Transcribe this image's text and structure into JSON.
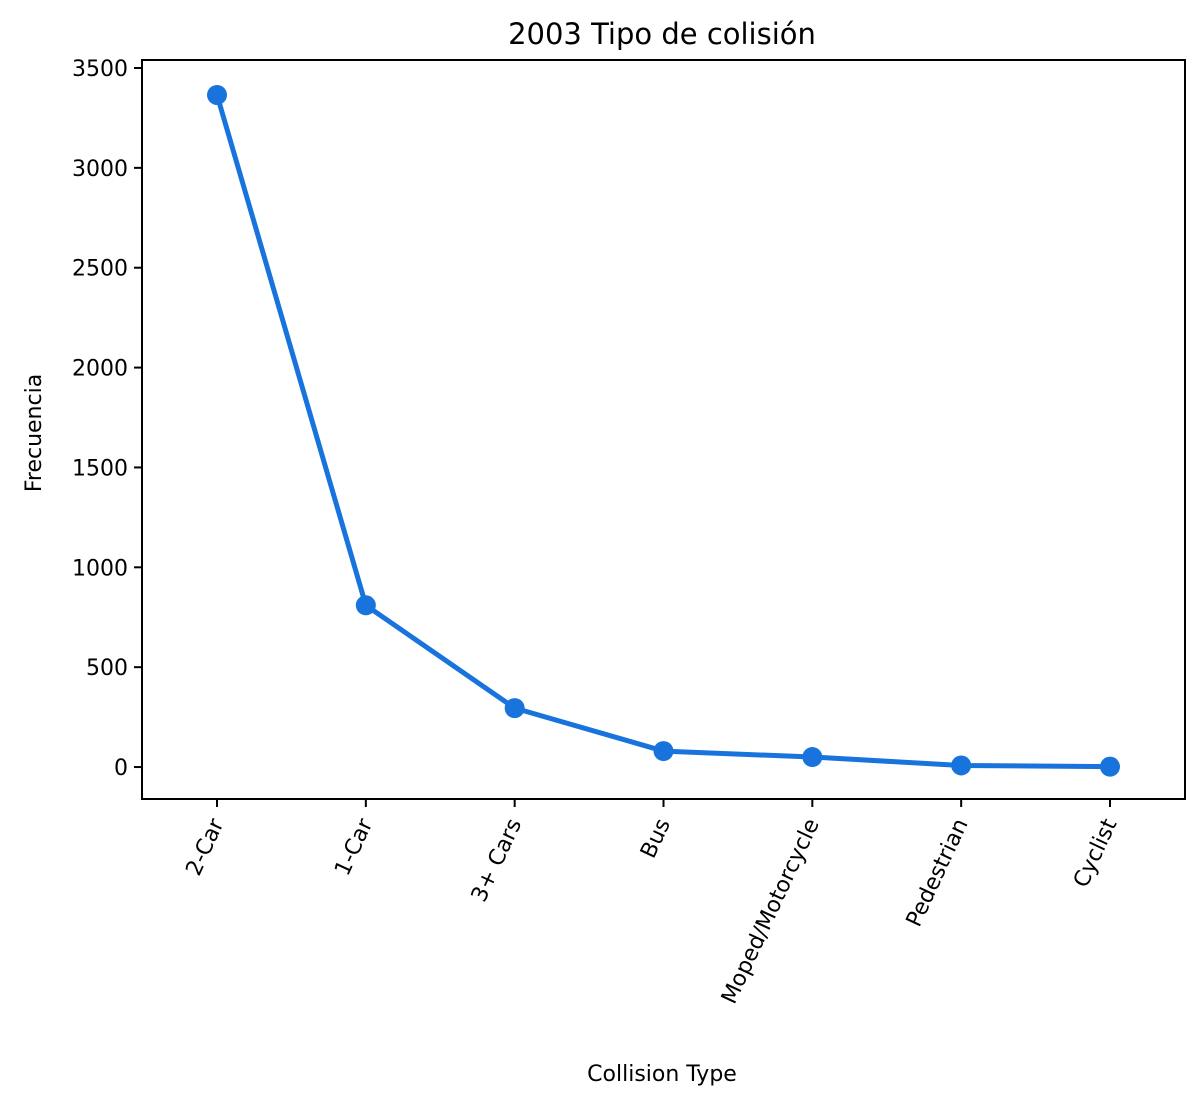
{
  "chart_data": {
    "type": "line",
    "title": "2003 Tipo de colisión",
    "xlabel": "Collision Type",
    "ylabel": "Frecuencia",
    "categories": [
      "2-Car",
      "1-Car",
      "3+ Cars",
      "Bus",
      "Moped/Motorcycle",
      "Pedestrian",
      "Cyclist"
    ],
    "values": [
      3365,
      810,
      295,
      80,
      50,
      8,
      2
    ],
    "yticks": [
      0,
      500,
      1000,
      1500,
      2000,
      2500,
      3000,
      3500
    ],
    "ylim": [
      -160,
      3540
    ],
    "grid": false,
    "legend": "none",
    "x_tick_rotation": -65,
    "colors": {
      "line": "#1874dc",
      "axes": "#000000"
    }
  }
}
